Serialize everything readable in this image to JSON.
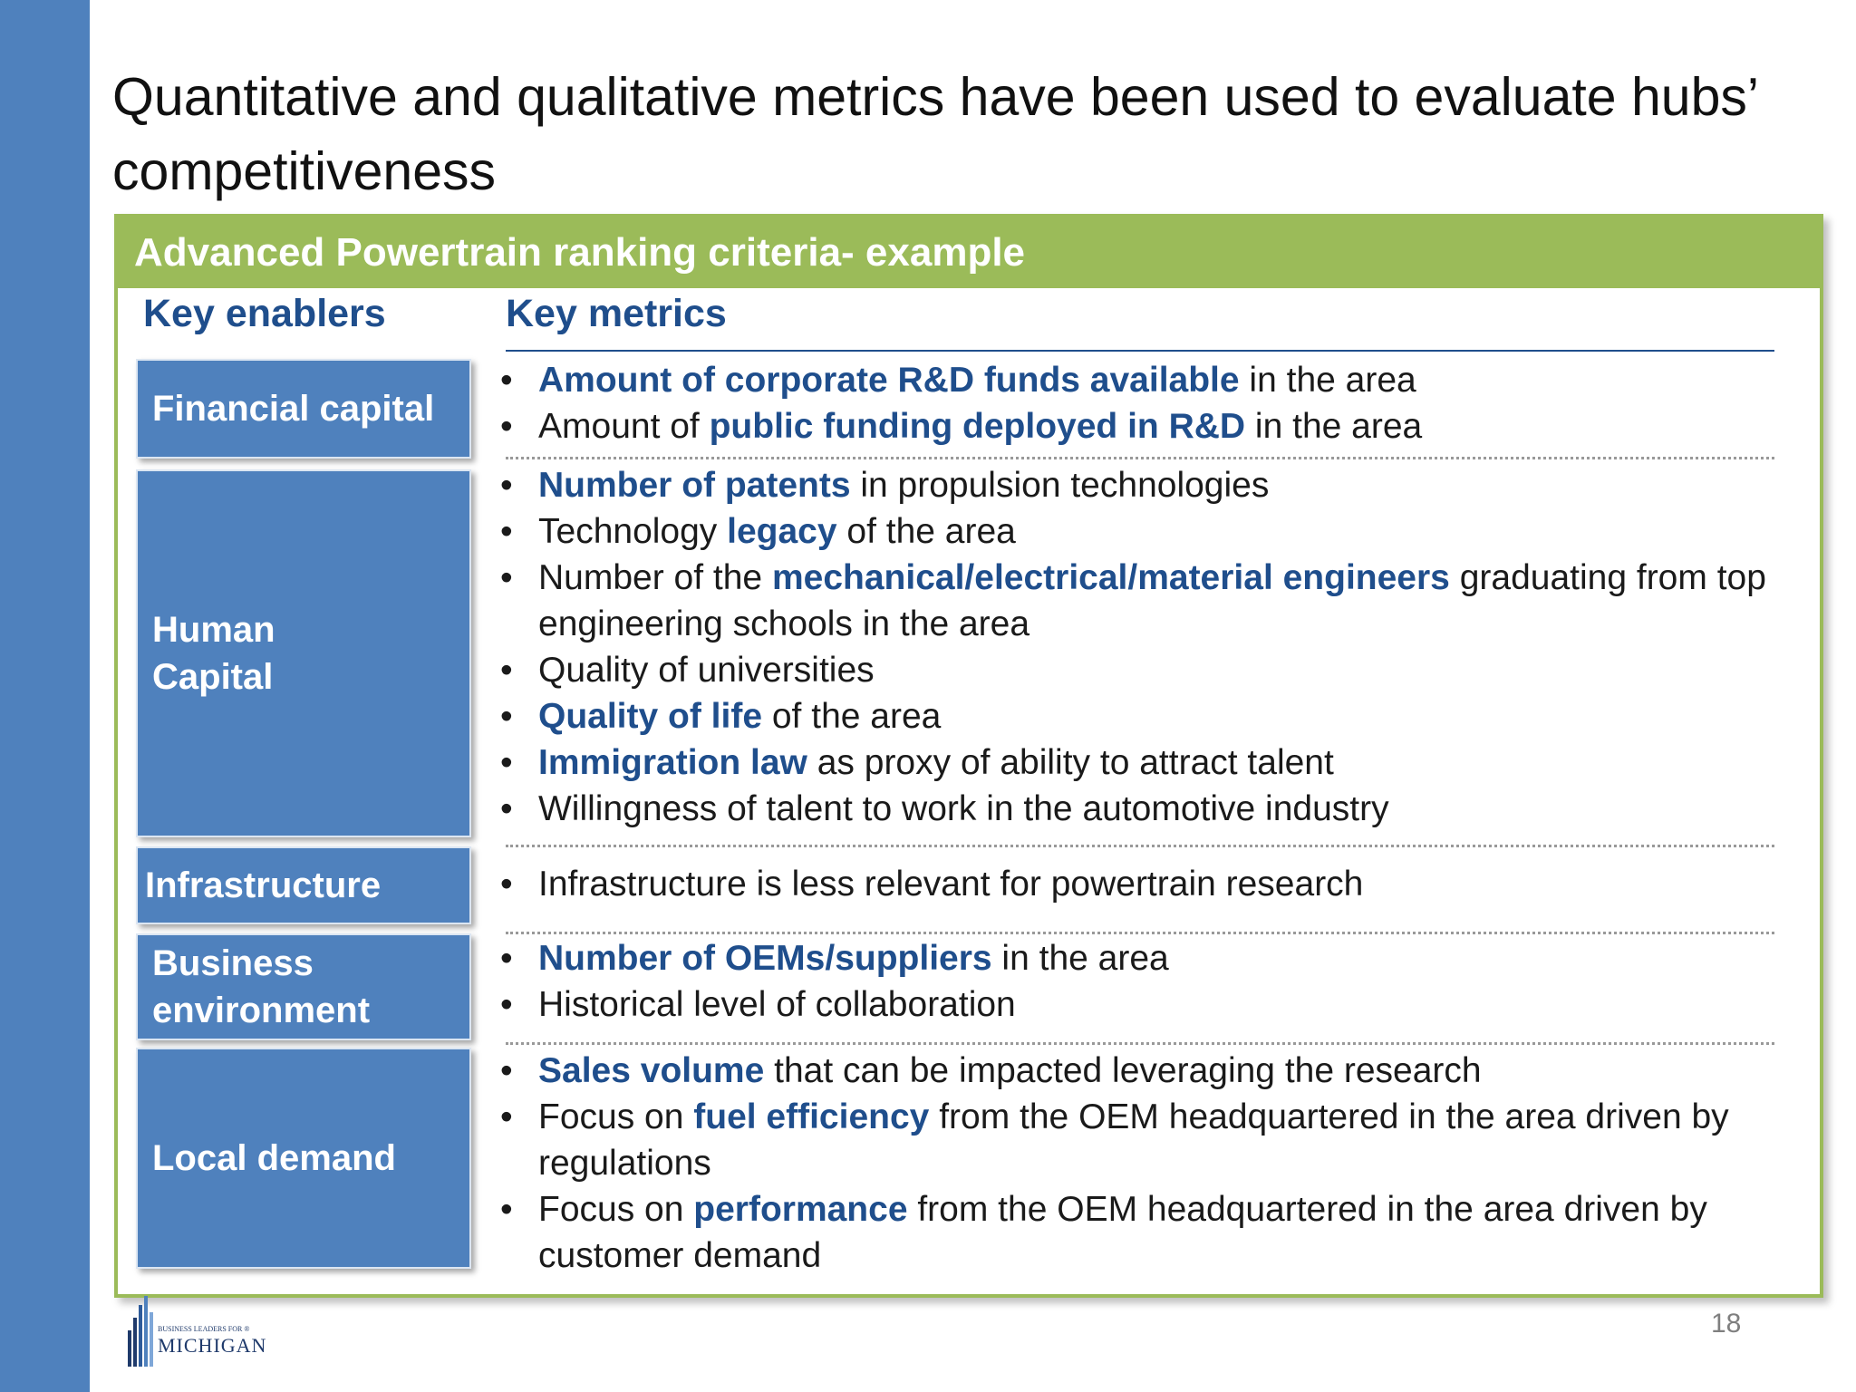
{
  "slide": {
    "title": "Quantitative and qualitative metrics have been used to evaluate hubs’ competitiveness",
    "page_number": "18"
  },
  "panel": {
    "header": "Advanced Powertrain ranking criteria- example",
    "col_enablers": "Key enablers",
    "col_metrics": "Key metrics"
  },
  "rows": [
    {
      "enabler": "Financial capital",
      "metrics": [
        [
          {
            "t": "Amount of corporate R&D funds available",
            "b": true
          },
          {
            "t": " in the area",
            "b": false
          }
        ],
        [
          {
            "t": "Amount of ",
            "b": false
          },
          {
            "t": "public funding deployed in R&D",
            "b": true
          },
          {
            "t": " in the area",
            "b": false
          }
        ]
      ]
    },
    {
      "enabler": "Human\nCapital",
      "metrics": [
        [
          {
            "t": "Number of patents",
            "b": true
          },
          {
            "t": " in propulsion technologies",
            "b": false
          }
        ],
        [
          {
            "t": "Technology ",
            "b": false
          },
          {
            "t": "legacy",
            "b": true
          },
          {
            "t": " of the area",
            "b": false
          }
        ],
        [
          {
            "t": "Number of the ",
            "b": false
          },
          {
            "t": "mechanical/electrical/material engineers",
            "b": true
          },
          {
            "t": "  graduating from top engineering schools in the area",
            "b": false
          }
        ],
        [
          {
            "t": "Quality of universities",
            "b": false
          }
        ],
        [
          {
            "t": "Quality of life",
            "b": true
          },
          {
            "t": " of the area",
            "b": false
          }
        ],
        [
          {
            "t": "Immigration law",
            "b": true
          },
          {
            "t": " as proxy of ability to attract talent",
            "b": false
          }
        ],
        [
          {
            "t": "Willingness of talent to work in the automotive industry",
            "b": false
          }
        ]
      ]
    },
    {
      "enabler": "Infrastructure",
      "metrics": [
        [
          {
            "t": "Infrastructure is less relevant for powertrain research",
            "b": false
          }
        ]
      ]
    },
    {
      "enabler": "Business\nenvironment",
      "metrics": [
        [
          {
            "t": "Number of OEMs/suppliers",
            "b": true
          },
          {
            "t": " in the area",
            "b": false
          }
        ],
        [
          {
            "t": "Historical level of collaboration",
            "b": false
          }
        ]
      ]
    },
    {
      "enabler": "Local demand",
      "metrics": [
        [
          {
            "t": "Sales volume",
            "b": true
          },
          {
            "t": " that can be impacted leveraging the research",
            "b": false
          }
        ],
        [
          {
            "t": "Focus on ",
            "b": false
          },
          {
            "t": "fuel efficiency",
            "b": true
          },
          {
            "t": " from the OEM headquartered in the area driven by regulations",
            "b": false
          }
        ],
        [
          {
            "t": "Focus on ",
            "b": false
          },
          {
            "t": "performance",
            "b": true
          },
          {
            "t": " from the OEM headquartered in the area driven by customer demand",
            "b": false
          }
        ]
      ]
    }
  ],
  "logo": {
    "small_text": "BUSINESS LEADERS FOR ®",
    "big_text": "MICHIGAN"
  },
  "colors": {
    "accent_blue": "#4f81bd",
    "accent_green": "#9bbb59",
    "highlight_text": "#1f4e8c"
  }
}
